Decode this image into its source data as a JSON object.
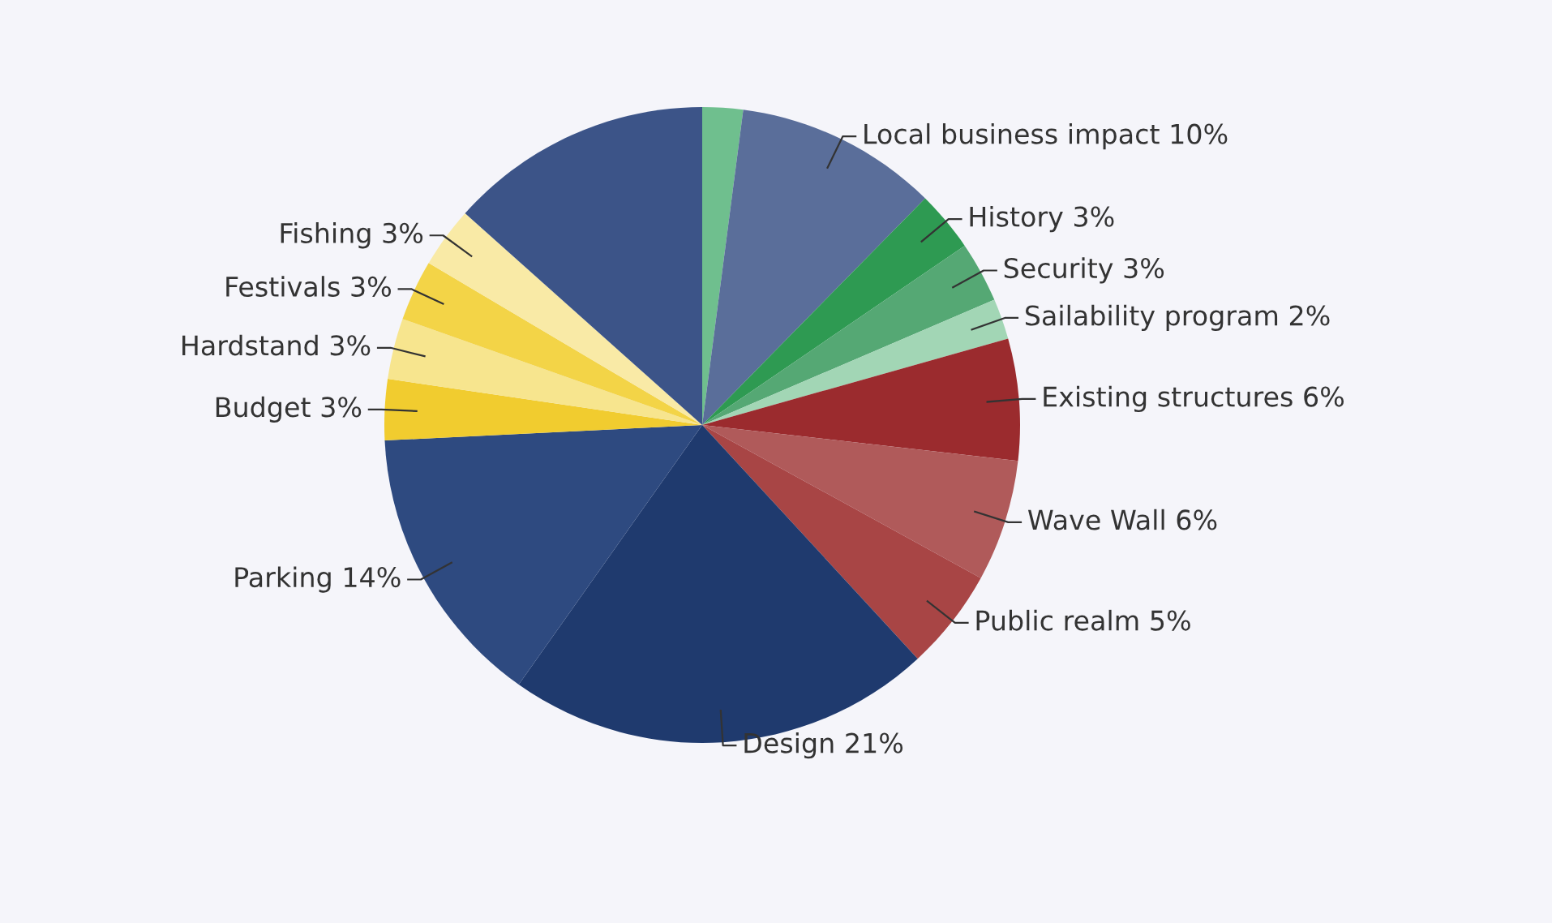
{
  "chart_data": {
    "type": "pie",
    "categories": [
      null,
      "Local business impact",
      "History",
      "Security",
      "Sailability program",
      "Existing structures",
      "Wave Wall",
      "Public realm",
      "Design",
      "Parking",
      "Budget",
      "Hardstand",
      "Festivals",
      "Fishing",
      null
    ],
    "values": [
      2,
      10,
      3,
      3,
      2,
      6,
      6,
      5,
      21,
      14,
      3,
      3,
      3,
      3,
      13
    ],
    "value_labels": [
      null,
      "10%",
      "3%",
      "3%",
      "2%",
      "6%",
      "6%",
      "5%",
      "21%",
      "14%",
      "3%",
      "3%",
      "3%",
      "3%",
      null
    ],
    "colors": [
      "#6fbf8e",
      "#5a6e9a",
      "#2e9a52",
      "#55a874",
      "#a2d6b5",
      "#9b2b2e",
      "#b05a5a",
      "#a84545",
      "#1f3a6e",
      "#2e4a80",
      "#f1cc2f",
      "#f7e58e",
      "#f3d447",
      "#f9eaa6",
      "#3c5488"
    ],
    "legend": false
  }
}
